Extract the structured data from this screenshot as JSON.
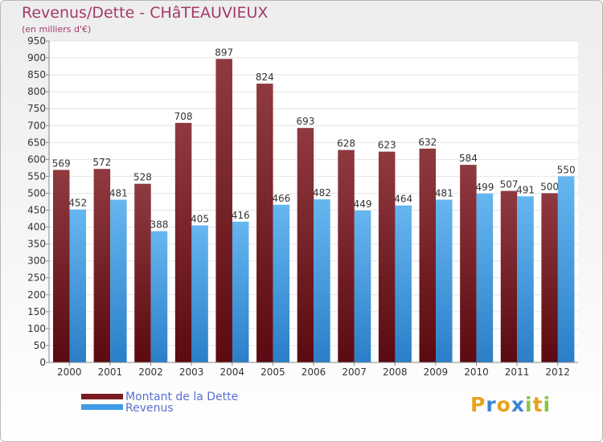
{
  "chart_data": {
    "type": "bar",
    "title": "Revenus/Dette - CHâTEAUVIEUX",
    "subtitle": "(en milliers d'€)",
    "categories": [
      "2000",
      "2001",
      "2002",
      "2003",
      "2004",
      "2005",
      "2006",
      "2007",
      "2008",
      "2009",
      "2010",
      "2011",
      "2012"
    ],
    "series": [
      {
        "name": "Montant de la Dette",
        "color": "#7a1b22",
        "values": [
          569,
          572,
          528,
          708,
          897,
          824,
          693,
          628,
          623,
          632,
          584,
          507,
          500
        ]
      },
      {
        "name": "Revenus",
        "color": "#3f9be6",
        "values": [
          452,
          481,
          388,
          405,
          416,
          466,
          482,
          449,
          464,
          481,
          499,
          491,
          550
        ]
      }
    ],
    "ylim": [
      0,
      950
    ],
    "ytick_step": 50,
    "grid": true,
    "legend_position": "bottom-left"
  },
  "logo": {
    "letters": [
      "P",
      "r",
      "o",
      "x",
      "i",
      "t",
      "i"
    ],
    "colors": [
      "#e8a21c",
      "#3a86d4",
      "#e8a21c",
      "#3a86d4",
      "#8cc63f",
      "#e8a21c",
      "#8cc63f"
    ]
  }
}
